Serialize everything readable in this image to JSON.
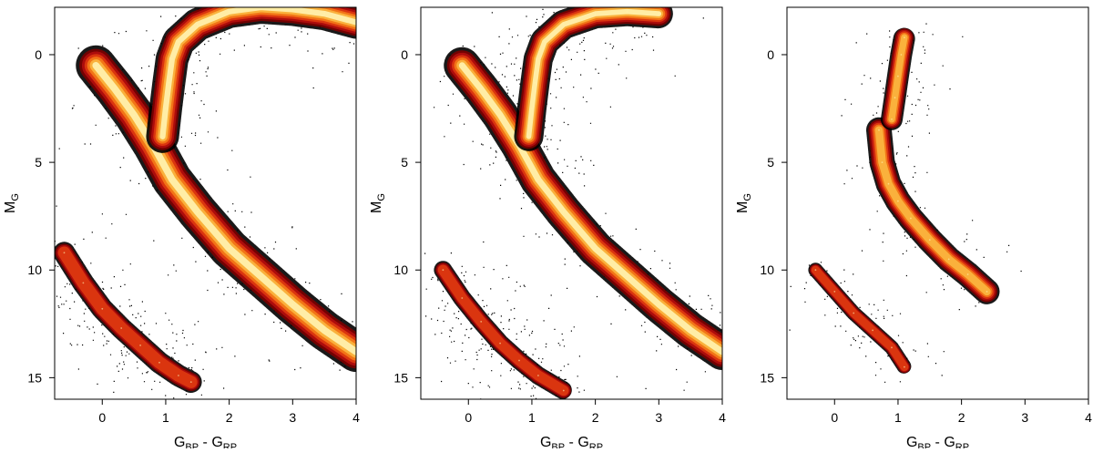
{
  "figure": {
    "panel_count": 3,
    "density_colormap": [
      "#7a0000",
      "#b10d0d",
      "#dd3a10",
      "#f47a18",
      "#fbb640",
      "#fff2b0"
    ],
    "outlier_point_color": "#000000"
  },
  "chart_data": [
    {
      "type": "scatter",
      "title": "",
      "xlabel": "G_BP - G_RP",
      "ylabel": "M_G",
      "xlim": [
        -0.75,
        4.0
      ],
      "ylim": [
        16.0,
        -2.2
      ],
      "y_inverted": true,
      "xticks": [
        "0",
        "1",
        "2",
        "3",
        "4"
      ],
      "yticks": [
        "0",
        "5",
        "10",
        "15"
      ],
      "grid": false,
      "legend": "none",
      "series": [
        {
          "component": "main_sequence_ridge",
          "x": [
            -0.1,
            0.2,
            0.5,
            0.8,
            1.1,
            1.5,
            2.0,
            2.5,
            3.0,
            3.5,
            4.0
          ],
          "y": [
            0.5,
            1.6,
            2.8,
            4.2,
            5.8,
            7.3,
            9.0,
            10.3,
            11.6,
            12.8,
            13.8
          ]
        },
        {
          "component": "giant_branch_ridge",
          "x": [
            0.95,
            1.0,
            1.05,
            1.1,
            1.2,
            1.5,
            2.0,
            2.5,
            3.0,
            3.5,
            4.0
          ],
          "y": [
            3.8,
            2.5,
            1.3,
            0.2,
            -0.6,
            -1.4,
            -2.0,
            -2.2,
            -2.1,
            -1.9,
            -1.5
          ]
        },
        {
          "component": "white_dwarf_ridge",
          "x": [
            -0.6,
            -0.3,
            0.0,
            0.3,
            0.6,
            0.9,
            1.2,
            1.4
          ],
          "y": [
            9.2,
            10.6,
            11.8,
            12.7,
            13.5,
            14.3,
            14.9,
            15.2
          ]
        }
      ]
    },
    {
      "type": "scatter",
      "title": "",
      "xlabel": "G_BP - G_RP",
      "ylabel": "M_G",
      "xlim": [
        -0.75,
        4.0
      ],
      "ylim": [
        16.0,
        -2.2
      ],
      "y_inverted": true,
      "xticks": [
        "0",
        "1",
        "2",
        "3",
        "4"
      ],
      "yticks": [
        "0",
        "5",
        "10",
        "15"
      ],
      "grid": false,
      "legend": "none",
      "series": [
        {
          "component": "main_sequence_ridge",
          "x": [
            -0.1,
            0.2,
            0.5,
            0.8,
            1.1,
            1.5,
            2.0,
            2.5,
            3.0,
            3.5,
            4.0
          ],
          "y": [
            0.5,
            1.6,
            2.8,
            4.2,
            5.8,
            7.3,
            9.0,
            10.3,
            11.6,
            12.8,
            13.8
          ]
        },
        {
          "component": "giant_branch_ridge",
          "x": [
            0.95,
            1.0,
            1.05,
            1.1,
            1.2,
            1.5,
            2.0,
            2.5,
            3.0
          ],
          "y": [
            3.8,
            2.5,
            1.3,
            0.2,
            -0.6,
            -1.4,
            -1.9,
            -2.0,
            -1.9
          ]
        },
        {
          "component": "white_dwarf_ridge",
          "x": [
            -0.4,
            -0.1,
            0.2,
            0.5,
            0.8,
            1.1,
            1.5
          ],
          "y": [
            10.0,
            11.3,
            12.4,
            13.4,
            14.2,
            14.9,
            15.6
          ]
        }
      ]
    },
    {
      "type": "scatter",
      "title": "",
      "xlabel": "G_BP - G_RP",
      "ylabel": "M_G",
      "xlim": [
        -0.75,
        4.0
      ],
      "ylim": [
        16.0,
        -2.2
      ],
      "y_inverted": true,
      "xticks": [
        "0",
        "1",
        "2",
        "3",
        "4"
      ],
      "yticks": [
        "0",
        "5",
        "10",
        "15"
      ],
      "grid": false,
      "legend": "none",
      "series": [
        {
          "component": "main_sequence_ridge",
          "x": [
            0.7,
            0.75,
            0.85,
            1.0,
            1.2,
            1.5,
            1.8,
            2.1,
            2.4
          ],
          "y": [
            3.5,
            5.0,
            6.0,
            6.8,
            7.6,
            8.6,
            9.5,
            10.2,
            11.0
          ]
        },
        {
          "component": "giant_branch_ridge",
          "x": [
            0.9,
            0.95,
            1.0,
            1.05,
            1.1
          ],
          "y": [
            3.0,
            2.0,
            1.0,
            0.0,
            -0.8
          ]
        },
        {
          "component": "white_dwarf_ridge",
          "x": [
            -0.3,
            0.0,
            0.3,
            0.6,
            0.9,
            1.1
          ],
          "y": [
            10.0,
            11.0,
            12.0,
            12.8,
            13.6,
            14.5
          ]
        }
      ]
    }
  ]
}
